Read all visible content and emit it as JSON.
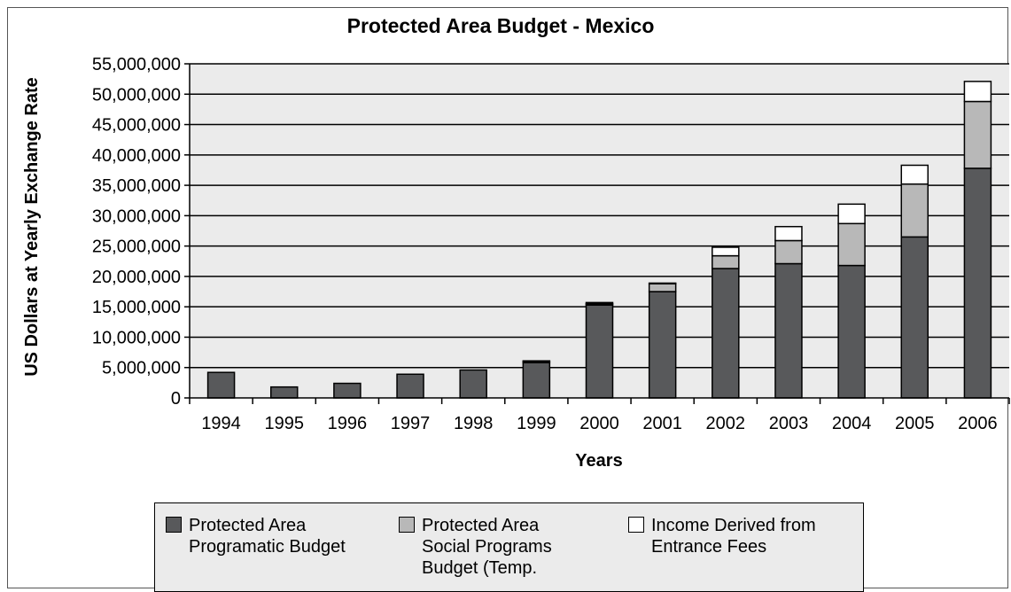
{
  "chart_data": {
    "type": "bar",
    "stacked": true,
    "title": "Protected Area Budget - Mexico",
    "xlabel": "Years",
    "ylabel": "US Dollars at Yearly Exchange Rate",
    "ylim": [
      0,
      55000000
    ],
    "ytick_step": 5000000,
    "ytick_labels": [
      "0",
      "5,000,000",
      "10,000,000",
      "15,000,000",
      "20,000,000",
      "25,000,000",
      "30,000,000",
      "35,000,000",
      "40,000,000",
      "45,000,000",
      "50,000,000",
      "55,000,000"
    ],
    "grid": true,
    "legend_position": "bottom",
    "categories": [
      "1994",
      "1995",
      "1996",
      "1997",
      "1998",
      "1999",
      "2000",
      "2001",
      "2002",
      "2003",
      "2004",
      "2005",
      "2006"
    ],
    "series": [
      {
        "name": "Protected Area Programatic Budget",
        "color": "#58595b",
        "values": [
          4200000,
          1800000,
          2400000,
          3900000,
          4600000,
          5800000,
          15300000,
          17500000,
          21300000,
          22100000,
          21800000,
          26500000,
          37800000
        ]
      },
      {
        "name": "Protected Area Social Programs Budget (Temp.",
        "color": "#b8b8b8",
        "values": [
          0,
          0,
          0,
          0,
          0,
          200000,
          200000,
          1300000,
          2100000,
          3800000,
          6900000,
          8700000,
          11000000
        ]
      },
      {
        "name": "Income Derived from Entrance Fees",
        "color": "#ffffff",
        "values": [
          0,
          0,
          0,
          0,
          0,
          100000,
          200000,
          100000,
          1400000,
          2300000,
          3200000,
          3100000,
          3300000
        ]
      }
    ]
  }
}
